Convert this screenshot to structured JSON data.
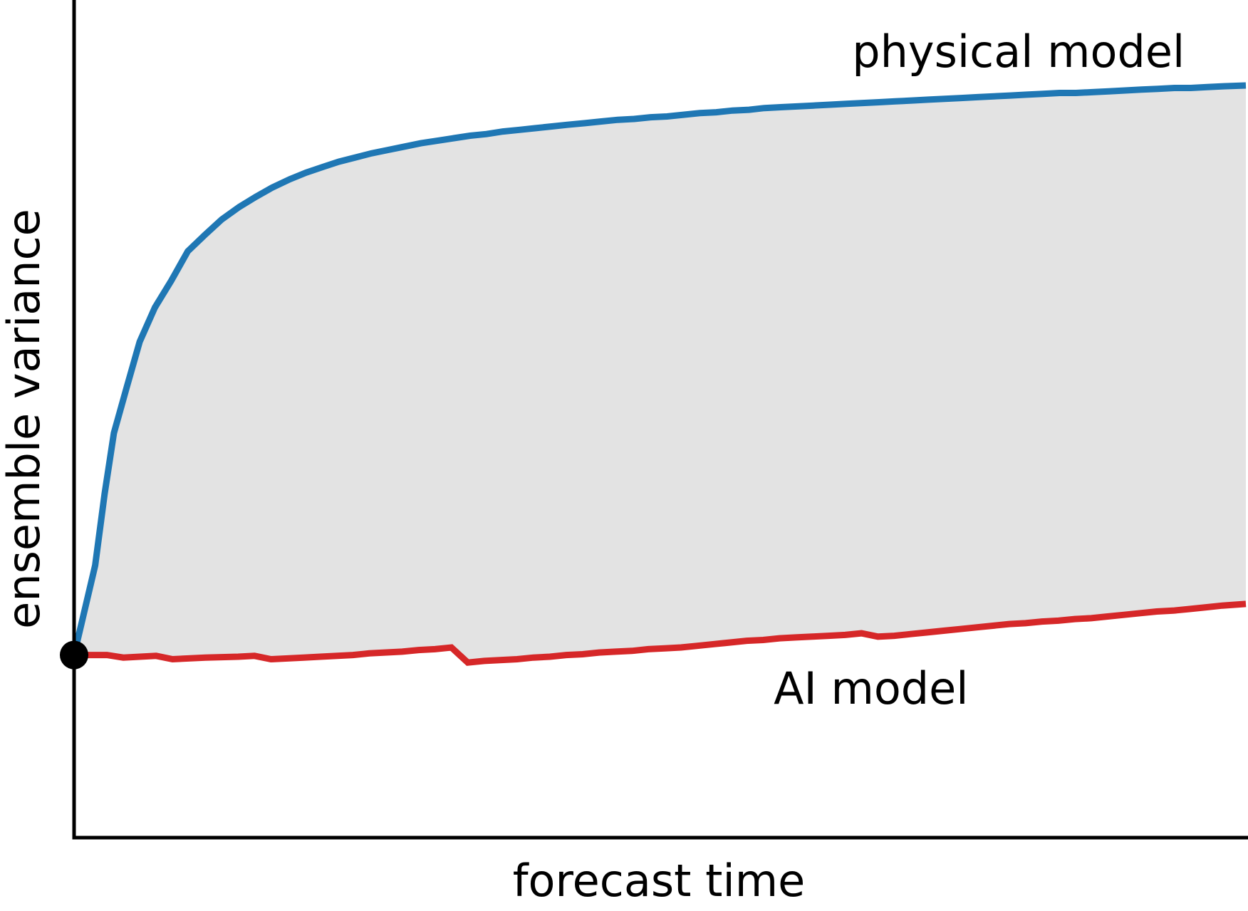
{
  "chart_data": {
    "type": "line",
    "title": "",
    "xlabel": "forecast time",
    "ylabel": "ensemble variance",
    "xlim": [
      0,
      1
    ],
    "ylim": [
      0,
      1
    ],
    "ticks_shown": false,
    "grid": false,
    "legend": "none (series labeled directly on the plot)",
    "shaded_region": "between series",
    "initial_point": {
      "x": 0,
      "y": 0.218
    },
    "series": [
      {
        "name": "physical model",
        "color": "#1f77b4",
        "x": [
          0,
          0.018,
          0.026,
          0.034,
          0.045,
          0.056,
          0.069,
          0.083,
          0.097,
          0.112,
          0.126,
          0.141,
          0.155,
          0.169,
          0.184,
          0.198,
          0.213,
          0.226,
          0.24,
          0.254,
          0.268,
          0.282,
          0.296,
          0.31,
          0.324,
          0.338,
          0.352,
          0.366,
          0.38,
          0.394,
          0.407,
          0.421,
          0.436,
          0.45,
          0.464,
          0.478,
          0.492,
          0.506,
          0.52,
          0.534,
          0.548,
          0.562,
          0.576,
          0.589,
          0.603,
          0.617,
          0.631,
          0.645,
          0.659,
          0.673,
          0.687,
          0.701,
          0.715,
          0.729,
          0.743,
          0.757,
          0.771,
          0.785,
          0.799,
          0.813,
          0.827,
          0.841,
          0.855,
          0.869,
          0.883,
          0.897,
          0.911,
          0.925,
          0.939,
          0.953,
          0.967,
          0.981,
          1
        ],
        "y": [
          0.218,
          0.325,
          0.41,
          0.483,
          0.538,
          0.592,
          0.633,
          0.665,
          0.7,
          0.72,
          0.738,
          0.753,
          0.765,
          0.776,
          0.786,
          0.794,
          0.801,
          0.807,
          0.812,
          0.817,
          0.821,
          0.825,
          0.829,
          0.832,
          0.835,
          0.838,
          0.84,
          0.843,
          0.845,
          0.847,
          0.849,
          0.851,
          0.853,
          0.855,
          0.857,
          0.858,
          0.86,
          0.861,
          0.863,
          0.865,
          0.866,
          0.868,
          0.869,
          0.871,
          0.872,
          0.873,
          0.874,
          0.875,
          0.876,
          0.877,
          0.878,
          0.879,
          0.88,
          0.881,
          0.882,
          0.883,
          0.884,
          0.885,
          0.886,
          0.887,
          0.888,
          0.889,
          0.889,
          0.89,
          0.891,
          0.892,
          0.893,
          0.894,
          0.895,
          0.895,
          0.896,
          0.897,
          0.898
        ]
      },
      {
        "name": "AI model",
        "color": "#d62728",
        "x": [
          0,
          0.028,
          0.042,
          0.07,
          0.084,
          0.112,
          0.14,
          0.154,
          0.168,
          0.196,
          0.21,
          0.238,
          0.252,
          0.28,
          0.294,
          0.308,
          0.322,
          0.336,
          0.35,
          0.378,
          0.392,
          0.406,
          0.42,
          0.434,
          0.448,
          0.462,
          0.476,
          0.49,
          0.504,
          0.518,
          0.532,
          0.546,
          0.56,
          0.574,
          0.588,
          0.602,
          0.616,
          0.63,
          0.644,
          0.658,
          0.672,
          0.686,
          0.7,
          0.714,
          0.728,
          0.742,
          0.756,
          0.77,
          0.784,
          0.798,
          0.812,
          0.826,
          0.84,
          0.854,
          0.868,
          0.882,
          0.896,
          0.91,
          0.924,
          0.938,
          0.952,
          0.966,
          0.98,
          1
        ],
        "y": [
          0.218,
          0.218,
          0.215,
          0.217,
          0.213,
          0.215,
          0.216,
          0.217,
          0.213,
          0.215,
          0.216,
          0.218,
          0.22,
          0.222,
          0.224,
          0.225,
          0.227,
          0.209,
          0.211,
          0.213,
          0.215,
          0.216,
          0.218,
          0.219,
          0.221,
          0.222,
          0.223,
          0.225,
          0.226,
          0.227,
          0.229,
          0.231,
          0.233,
          0.235,
          0.236,
          0.238,
          0.239,
          0.24,
          0.241,
          0.242,
          0.244,
          0.24,
          0.241,
          0.243,
          0.245,
          0.247,
          0.249,
          0.251,
          0.253,
          0.255,
          0.256,
          0.258,
          0.259,
          0.261,
          0.262,
          0.264,
          0.266,
          0.268,
          0.27,
          0.271,
          0.273,
          0.275,
          0.277,
          0.279
        ]
      }
    ],
    "annotations": [
      {
        "text": "physical model",
        "x": 0.664,
        "y": 0.92
      },
      {
        "text": "AI model",
        "x": 0.597,
        "y": 0.16
      }
    ]
  }
}
